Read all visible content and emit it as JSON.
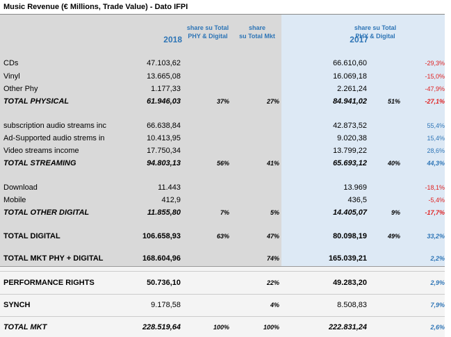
{
  "header": {
    "title": "Music Revenue (€ Millions, Trade Value) - Dato IFPI",
    "columns": [
      [
        "2018"
      ],
      [
        "share su Total",
        "PHY & Digital"
      ],
      [
        "share",
        "su Total Mkt"
      ],
      [
        "2017"
      ],
      [
        "share su Total",
        "PHY & Digital"
      ]
    ]
  },
  "table": {
    "rows": [
      [
        "CDs",
        "47.103,62",
        null,
        null,
        "66.610,60",
        null,
        "-29,3%"
      ],
      [
        "Vinyl",
        "13.665,08",
        null,
        null,
        "16.069,18",
        null,
        "-15,0%"
      ],
      [
        "Other Phy",
        "1.177,33",
        null,
        null,
        "2.261,24",
        null,
        "-47,9%"
      ],
      [
        "TOTAL PHYSICAL",
        "61.946,03",
        "37%",
        "27%",
        "84.941,02",
        "51%",
        "-27,1%"
      ],
      [
        "subscription audio streams inc",
        "66.638,84",
        null,
        null,
        "42.873,52",
        null,
        "55,4%"
      ],
      [
        "Ad-Supported audio strems in",
        "10.413,95",
        null,
        null,
        "9.020,38",
        null,
        "15,4%"
      ],
      [
        "Video streams  income",
        "17.750,34",
        null,
        null,
        "13.799,22",
        null,
        "28,6%"
      ],
      [
        "TOTAL STREAMING",
        "94.803,13",
        "56%",
        "41%",
        "65.693,12",
        "40%",
        "44,3%"
      ],
      [
        "Download",
        "11.443",
        null,
        null,
        "13.969",
        null,
        "-18,1%"
      ],
      [
        "Mobile",
        "412,9",
        null,
        null,
        "436,5",
        null,
        "-5,4%"
      ],
      [
        "TOTAL OTHER DIGITAL",
        "11.855,80",
        "7%",
        "5%",
        "14.405,07",
        "9%",
        "-17,7%"
      ],
      [
        "TOTAL DIGITAL",
        "106.658,93",
        "63%",
        "47%",
        "80.098,19",
        "49%",
        "33,2%"
      ],
      [
        "TOTAL MKT PHY + DIGITAL",
        "168.604,96",
        null,
        "74%",
        "165.039,21",
        null,
        "2,2%"
      ],
      [
        "PERFORMANCE RIGHTS",
        "50.736,10",
        null,
        "22%",
        "49.283,20",
        null,
        "2,9%"
      ],
      [
        "SYNCH",
        "9.178,58",
        null,
        "4%",
        "8.508,83",
        null,
        "7,9%"
      ],
      [
        "TOTAL MKT",
        "228.519,64",
        "100%",
        "100%",
        "222.831,24",
        null,
        "2,6%"
      ]
    ]
  }
}
